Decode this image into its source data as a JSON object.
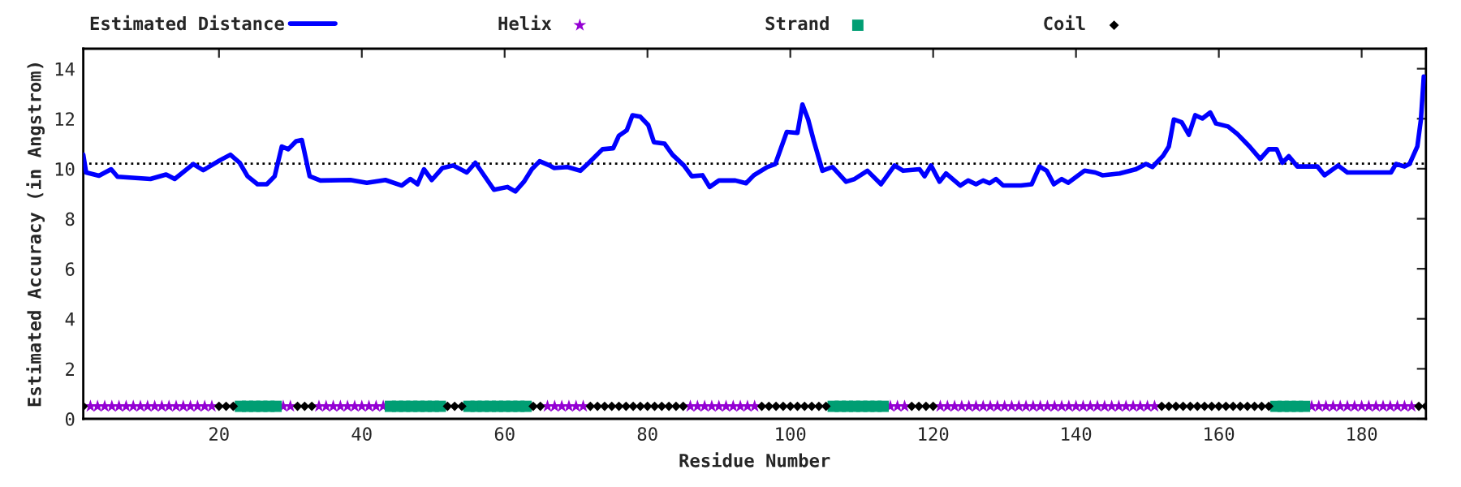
{
  "chart_data": {
    "type": "line",
    "xlabel": "Residue Number",
    "ylabel": "Estimated Accuracy (in Angstrom)",
    "xlim": [
      1,
      189
    ],
    "xticks": [
      20,
      40,
      60,
      80,
      100,
      120,
      140,
      160,
      180
    ],
    "ylim": [
      0,
      14.8
    ],
    "yticks": [
      0,
      2,
      4,
      6,
      8,
      10,
      12,
      14
    ],
    "grid": false,
    "legend": "top",
    "ref_lines": [
      {
        "axis": "y",
        "value": 10.2,
        "color": "#000000",
        "line_style": "dotted"
      }
    ],
    "series": [
      {
        "name": "Estimated Distance",
        "color": "#0000ff",
        "marker": "none",
        "line_style": "solid",
        "x": [
          1,
          1.4,
          3.2,
          4.9,
          5.8,
          10.4,
          12.6,
          13.8,
          16.4,
          17.8,
          20.2,
          21.6,
          22.9,
          24,
          25.4,
          26.7,
          27.8,
          28.8,
          29.7,
          30.8,
          31.6,
          32.7,
          34.2,
          38.4,
          40.7,
          43.3,
          45.6,
          46.8,
          47.8,
          48.7,
          49.8,
          51.3,
          52.8,
          54.7,
          55.9,
          58.5,
          60.4,
          61.5,
          62.7,
          63.8,
          64.9,
          66.3,
          66.9,
          68.8,
          70.6,
          71.8,
          73.7,
          75.2,
          76,
          77.1,
          77.9,
          79,
          80.1,
          80.9,
          82.4,
          83.5,
          85.1,
          86.2,
          87.7,
          88.7,
          90,
          92.3,
          93.8,
          94.9,
          96.8,
          97.9,
          99.5,
          101,
          101.7,
          102.5,
          103.3,
          104.5,
          105.9,
          107.8,
          109,
          110.8,
          112.7,
          114.6,
          115.8,
          118.1,
          118.8,
          119.7,
          120.9,
          121.8,
          123.8,
          124.9,
          126,
          127,
          127.9,
          128.8,
          129.8,
          132.3,
          133.8,
          134.9,
          135.9,
          136.9,
          138,
          138.9,
          141.2,
          142.7,
          143.7,
          146.1,
          148.4,
          149.8,
          150.7,
          152.2,
          153,
          153.7,
          154.8,
          155.8,
          156.7,
          157.7,
          158.8,
          159.6,
          161.3,
          162.6,
          164.3,
          165.8,
          167,
          168.1,
          168.9,
          169.8,
          171,
          173.8,
          174.8,
          176.7,
          178,
          184.1,
          184.8,
          186,
          186.7,
          187.8,
          188.3,
          188.7
        ],
        "values": [
          10.56,
          9.85,
          9.72,
          9.98,
          9.68,
          9.59,
          9.77,
          9.59,
          10.19,
          9.94,
          10.35,
          10.56,
          10.24,
          9.7,
          9.38,
          9.38,
          9.7,
          10.89,
          10.78,
          11.1,
          11.15,
          9.7,
          9.53,
          9.55,
          9.44,
          9.55,
          9.33,
          9.59,
          9.38,
          9.98,
          9.55,
          10.03,
          10.13,
          9.85,
          10.24,
          9.16,
          9.27,
          9.09,
          9.48,
          9.98,
          10.3,
          10.13,
          10.03,
          10.07,
          9.92,
          10.24,
          10.78,
          10.82,
          11.32,
          11.54,
          12.14,
          12.08,
          11.75,
          11.06,
          11.0,
          10.56,
          10.13,
          9.7,
          9.74,
          9.27,
          9.53,
          9.53,
          9.42,
          9.74,
          10.07,
          10.19,
          11.47,
          11.43,
          12.57,
          11.97,
          11.1,
          9.92,
          10.07,
          9.48,
          9.59,
          9.92,
          9.38,
          10.13,
          9.92,
          9.98,
          9.7,
          10.13,
          9.48,
          9.81,
          9.33,
          9.53,
          9.38,
          9.53,
          9.42,
          9.59,
          9.33,
          9.33,
          9.38,
          10.09,
          9.92,
          9.38,
          9.59,
          9.44,
          9.92,
          9.85,
          9.74,
          9.81,
          9.98,
          10.19,
          10.07,
          10.52,
          10.89,
          11.97,
          11.86,
          11.36,
          12.14,
          12.01,
          12.25,
          11.81,
          11.69,
          11.39,
          10.89,
          10.39,
          10.78,
          10.78,
          10.24,
          10.5,
          10.09,
          10.09,
          9.74,
          10.13,
          9.85,
          9.85,
          10.19,
          10.09,
          10.19,
          10.89,
          11.97,
          13.69
        ]
      },
      {
        "name": "Helix",
        "type": "scatter",
        "color": "#9400d3",
        "marker": "star",
        "x": [
          2,
          3,
          4,
          5,
          6,
          7,
          8,
          9,
          10,
          11,
          12,
          13,
          14,
          15,
          16,
          17,
          18,
          19,
          29,
          30,
          34,
          35,
          36,
          37,
          38,
          39,
          40,
          41,
          42,
          43,
          66,
          67,
          68,
          69,
          70,
          71,
          86,
          87,
          88,
          89,
          90,
          91,
          92,
          93,
          94,
          95,
          114,
          115,
          116,
          121,
          122,
          123,
          124,
          125,
          126,
          127,
          128,
          129,
          130,
          131,
          132,
          133,
          134,
          135,
          136,
          137,
          138,
          139,
          140,
          141,
          142,
          143,
          144,
          145,
          146,
          147,
          148,
          149,
          150,
          151,
          173,
          174,
          175,
          176,
          177,
          178,
          179,
          180,
          181,
          182,
          183,
          184,
          185,
          186,
          187
        ],
        "values": [
          0.5,
          0.5,
          0.5,
          0.5,
          0.5,
          0.5,
          0.5,
          0.5,
          0.5,
          0.5,
          0.5,
          0.5,
          0.5,
          0.5,
          0.5,
          0.5,
          0.5,
          0.5,
          0.5,
          0.5,
          0.5,
          0.5,
          0.5,
          0.5,
          0.5,
          0.5,
          0.5,
          0.5,
          0.5,
          0.5,
          0.5,
          0.5,
          0.5,
          0.5,
          0.5,
          0.5,
          0.5,
          0.5,
          0.5,
          0.5,
          0.5,
          0.5,
          0.5,
          0.5,
          0.5,
          0.5,
          0.5,
          0.5,
          0.5,
          0.5,
          0.5,
          0.5,
          0.5,
          0.5,
          0.5,
          0.5,
          0.5,
          0.5,
          0.5,
          0.5,
          0.5,
          0.5,
          0.5,
          0.5,
          0.5,
          0.5,
          0.5,
          0.5,
          0.5,
          0.5,
          0.5,
          0.5,
          0.5,
          0.5,
          0.5,
          0.5,
          0.5,
          0.5,
          0.5,
          0.5,
          0.5,
          0.5,
          0.5,
          0.5,
          0.5,
          0.5,
          0.5,
          0.5,
          0.5,
          0.5,
          0.5,
          0.5,
          0.5,
          0.5,
          0.5
        ]
      },
      {
        "name": "Strand",
        "type": "scatter",
        "color": "#009e73",
        "marker": "square",
        "x": [
          23,
          24,
          25,
          26,
          27,
          28,
          44,
          45,
          46,
          47,
          48,
          49,
          50,
          51,
          55,
          56,
          57,
          58,
          59,
          60,
          61,
          62,
          63,
          106,
          107,
          108,
          109,
          110,
          111,
          112,
          113,
          168,
          169,
          170,
          171,
          172
        ],
        "values": [
          0.5,
          0.5,
          0.5,
          0.5,
          0.5,
          0.5,
          0.5,
          0.5,
          0.5,
          0.5,
          0.5,
          0.5,
          0.5,
          0.5,
          0.5,
          0.5,
          0.5,
          0.5,
          0.5,
          0.5,
          0.5,
          0.5,
          0.5,
          0.5,
          0.5,
          0.5,
          0.5,
          0.5,
          0.5,
          0.5,
          0.5,
          0.5,
          0.5,
          0.5,
          0.5,
          0.5
        ]
      },
      {
        "name": "Coil",
        "type": "scatter",
        "color": "#000000",
        "marker": "diamond",
        "x": [
          1,
          20,
          21,
          22,
          31,
          32,
          33,
          52,
          53,
          54,
          64,
          65,
          72,
          73,
          74,
          75,
          76,
          77,
          78,
          79,
          80,
          81,
          82,
          83,
          84,
          85,
          96,
          97,
          98,
          99,
          100,
          101,
          102,
          103,
          104,
          105,
          117,
          118,
          119,
          120,
          152,
          153,
          154,
          155,
          156,
          157,
          158,
          159,
          160,
          161,
          162,
          163,
          164,
          165,
          166,
          167,
          188,
          189
        ],
        "values": [
          0.5,
          0.5,
          0.5,
          0.5,
          0.5,
          0.5,
          0.5,
          0.5,
          0.5,
          0.5,
          0.5,
          0.5,
          0.5,
          0.5,
          0.5,
          0.5,
          0.5,
          0.5,
          0.5,
          0.5,
          0.5,
          0.5,
          0.5,
          0.5,
          0.5,
          0.5,
          0.5,
          0.5,
          0.5,
          0.5,
          0.5,
          0.5,
          0.5,
          0.5,
          0.5,
          0.5,
          0.5,
          0.5,
          0.5,
          0.5,
          0.5,
          0.5,
          0.5,
          0.5,
          0.5,
          0.5,
          0.5,
          0.5,
          0.5,
          0.5,
          0.5,
          0.5,
          0.5,
          0.5,
          0.5,
          0.5,
          0.5,
          0.5
        ]
      }
    ]
  }
}
